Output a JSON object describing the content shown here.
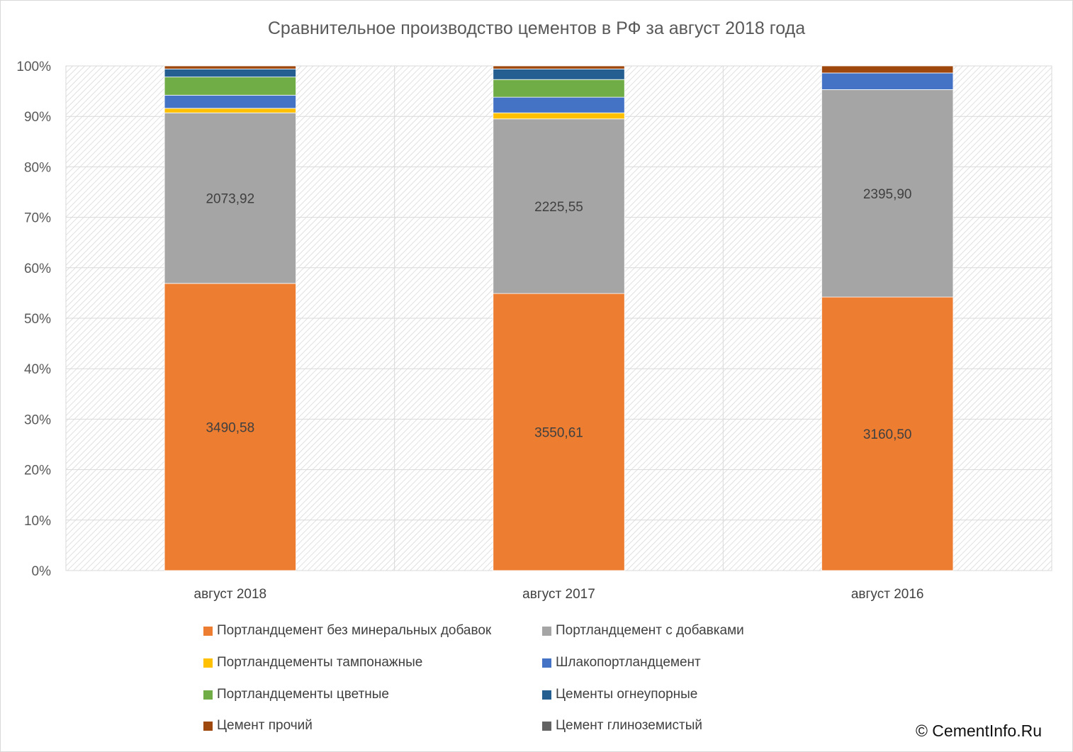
{
  "chart_data": {
    "type": "bar",
    "stacked": "percent",
    "title": "Сравнительное производство цементов в РФ за август 2018 года",
    "categories": [
      "август 2018",
      "август 2017",
      "август 2016"
    ],
    "ylim": [
      0,
      100
    ],
    "yticks": [
      "0%",
      "10%",
      "20%",
      "30%",
      "40%",
      "50%",
      "60%",
      "70%",
      "80%",
      "90%",
      "100%"
    ],
    "grid": true,
    "legend_position": "bottom",
    "series": [
      {
        "name": "Портландцемент без минеральных добавок",
        "color": "#ED7D31",
        "values": [
          56.9,
          54.9,
          54.2
        ],
        "labels": [
          "3490,58",
          "3550,61",
          "3160,50"
        ]
      },
      {
        "name": "Портландцемент с добавками",
        "color": "#A5A5A5",
        "values": [
          33.8,
          34.6,
          41.1
        ],
        "labels": [
          "2073,92",
          "2225,55",
          "2395,90"
        ]
      },
      {
        "name": "Портландцементы тампонажные",
        "color": "#FFC000",
        "values": [
          0.9,
          1.2,
          0.0
        ]
      },
      {
        "name": "Шлакопортландцемент",
        "color": "#4472C4",
        "values": [
          2.6,
          3.1,
          3.3
        ]
      },
      {
        "name": "Портландцементы цветные",
        "color": "#70AD47",
        "values": [
          3.6,
          3.5,
          0.0
        ]
      },
      {
        "name": "Цементы огнеупорные",
        "color": "#255E91",
        "values": [
          1.6,
          2.1,
          0.0
        ]
      },
      {
        "name": "Цемент прочий",
        "color": "#9E480E",
        "values": [
          0.6,
          0.6,
          1.4
        ]
      },
      {
        "name": "Цемент глиноземистый",
        "color": "#636363",
        "values": [
          0.0,
          0.0,
          0.0
        ]
      }
    ]
  },
  "copyright": "© CementInfo.Ru"
}
